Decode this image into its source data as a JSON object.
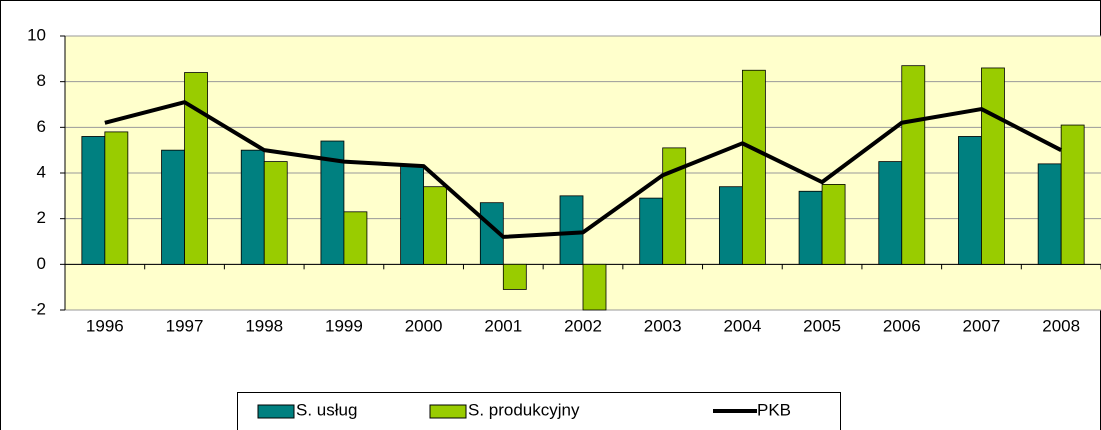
{
  "chart_data": {
    "type": "bar_line",
    "categories": [
      "1996",
      "1997",
      "1998",
      "1999",
      "2000",
      "2001",
      "2002",
      "2003",
      "2004",
      "2005",
      "2006",
      "2007",
      "2008"
    ],
    "series": [
      {
        "name": "S. usług",
        "type": "bar",
        "color": "#008080",
        "values": [
          5.6,
          5.0,
          5.0,
          5.4,
          4.3,
          2.7,
          3.0,
          2.9,
          3.4,
          3.2,
          4.5,
          5.6,
          4.4
        ]
      },
      {
        "name": "S. produkcyjny",
        "type": "bar",
        "color": "#99cc00",
        "values": [
          5.8,
          8.4,
          4.5,
          2.3,
          3.4,
          -1.1,
          -2.0,
          5.1,
          8.5,
          3.5,
          8.7,
          8.6,
          6.1
        ]
      },
      {
        "name": "PKB",
        "type": "line",
        "color": "#000000",
        "values": [
          6.2,
          7.1,
          5.0,
          4.5,
          4.3,
          1.2,
          1.4,
          3.9,
          5.3,
          3.6,
          6.2,
          6.8,
          5.0
        ]
      }
    ],
    "ylim": [
      -2,
      10
    ],
    "yticks": [
      -2,
      0,
      2,
      4,
      6,
      8,
      10
    ],
    "grid": true,
    "legend": "bottom"
  }
}
